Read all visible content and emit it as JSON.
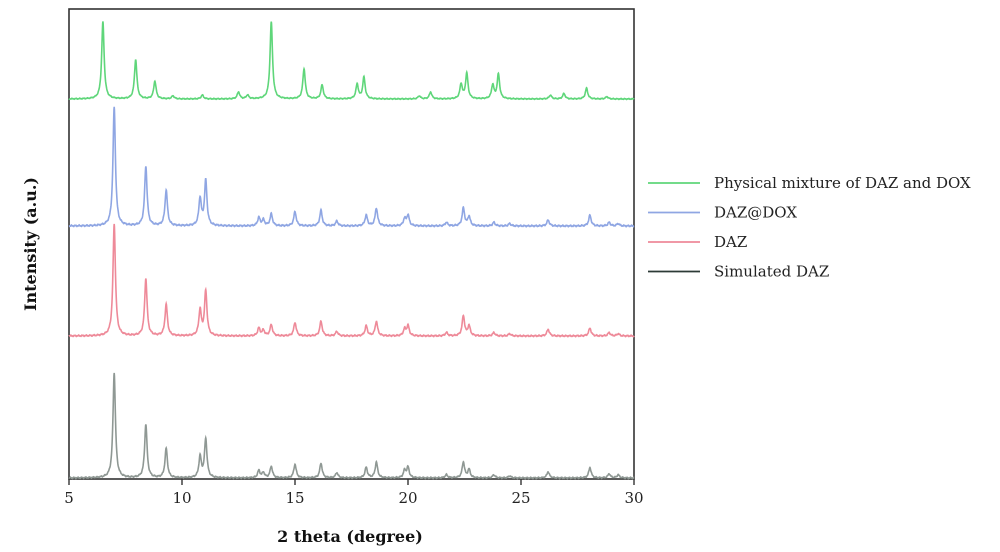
{
  "chart_data": {
    "type": "line",
    "xlabel": "2 theta (degree)",
    "ylabel": "Intensity (a.u.)",
    "xlim": [
      5,
      30
    ],
    "xticks": [
      5,
      10,
      15,
      20,
      25,
      30
    ],
    "yticks_shown": false,
    "grid": false,
    "legend_position": "right",
    "series": [
      {
        "name": "Physical mixture of DAZ and DOX",
        "color": "#5fd67a",
        "offset": 3,
        "scale": 0.55,
        "peaks": [
          [
            6.5,
            1.0
          ],
          [
            7.95,
            0.51
          ],
          [
            8.8,
            0.23
          ],
          [
            9.6,
            0.04
          ],
          [
            10.9,
            0.05
          ],
          [
            12.5,
            0.09
          ],
          [
            12.9,
            0.05
          ],
          [
            13.95,
            1.0
          ],
          [
            15.4,
            0.39
          ],
          [
            16.2,
            0.18
          ],
          [
            17.75,
            0.19
          ],
          [
            18.05,
            0.28
          ],
          [
            20.5,
            0.04
          ],
          [
            21.0,
            0.09
          ],
          [
            22.35,
            0.19
          ],
          [
            22.6,
            0.33
          ],
          [
            23.75,
            0.18
          ],
          [
            24.0,
            0.32
          ],
          [
            26.3,
            0.05
          ],
          [
            26.9,
            0.07
          ],
          [
            27.9,
            0.14
          ],
          [
            28.8,
            0.03
          ]
        ]
      },
      {
        "name": "DAZ@DOX",
        "color": "#8fa6e3",
        "offset": 2,
        "scale": 0.85,
        "peaks": [
          [
            7.0,
            1.0
          ],
          [
            8.4,
            0.5
          ],
          [
            9.3,
            0.3
          ],
          [
            10.8,
            0.23
          ],
          [
            11.05,
            0.38
          ],
          [
            13.4,
            0.07
          ],
          [
            13.6,
            0.05
          ],
          [
            13.95,
            0.1
          ],
          [
            15.0,
            0.12
          ],
          [
            16.15,
            0.13
          ],
          [
            16.85,
            0.04
          ],
          [
            18.15,
            0.09
          ],
          [
            18.6,
            0.15
          ],
          [
            19.85,
            0.06
          ],
          [
            20.0,
            0.09
          ],
          [
            21.7,
            0.03
          ],
          [
            22.45,
            0.15
          ],
          [
            22.7,
            0.08
          ],
          [
            23.8,
            0.03
          ],
          [
            24.5,
            0.02
          ],
          [
            26.2,
            0.05
          ],
          [
            28.05,
            0.09
          ],
          [
            28.9,
            0.03
          ],
          [
            29.3,
            0.02
          ]
        ]
      },
      {
        "name": "DAZ",
        "color": "#ee8a99",
        "offset": 1,
        "scale": 0.8,
        "peaks": [
          [
            7.0,
            1.0
          ],
          [
            8.4,
            0.51
          ],
          [
            9.3,
            0.28
          ],
          [
            10.8,
            0.23
          ],
          [
            11.05,
            0.4
          ],
          [
            13.4,
            0.07
          ],
          [
            13.6,
            0.05
          ],
          [
            13.95,
            0.1
          ],
          [
            15.0,
            0.12
          ],
          [
            16.15,
            0.13
          ],
          [
            16.85,
            0.04
          ],
          [
            18.15,
            0.09
          ],
          [
            18.6,
            0.13
          ],
          [
            19.85,
            0.06
          ],
          [
            20.0,
            0.09
          ],
          [
            21.7,
            0.03
          ],
          [
            22.45,
            0.18
          ],
          [
            22.7,
            0.09
          ],
          [
            23.8,
            0.03
          ],
          [
            24.5,
            0.02
          ],
          [
            26.2,
            0.06
          ],
          [
            28.05,
            0.07
          ],
          [
            28.9,
            0.03
          ],
          [
            29.3,
            0.02
          ]
        ]
      },
      {
        "name": "Simulated DAZ",
        "color": "#8f9894",
        "legend_color": "#2c3a36",
        "offset": 0,
        "scale": 0.75,
        "peaks": [
          [
            7.0,
            1.0
          ],
          [
            8.4,
            0.51
          ],
          [
            9.3,
            0.28
          ],
          [
            10.8,
            0.2
          ],
          [
            11.05,
            0.37
          ],
          [
            13.4,
            0.07
          ],
          [
            13.6,
            0.05
          ],
          [
            13.95,
            0.11
          ],
          [
            15.0,
            0.13
          ],
          [
            16.15,
            0.14
          ],
          [
            16.85,
            0.05
          ],
          [
            18.15,
            0.1
          ],
          [
            18.6,
            0.15
          ],
          [
            19.85,
            0.07
          ],
          [
            20.0,
            0.1
          ],
          [
            21.7,
            0.03
          ],
          [
            22.45,
            0.15
          ],
          [
            22.7,
            0.08
          ],
          [
            23.8,
            0.03
          ],
          [
            24.5,
            0.02
          ],
          [
            26.2,
            0.06
          ],
          [
            28.05,
            0.1
          ],
          [
            28.9,
            0.04
          ],
          [
            29.3,
            0.03
          ]
        ]
      }
    ]
  }
}
